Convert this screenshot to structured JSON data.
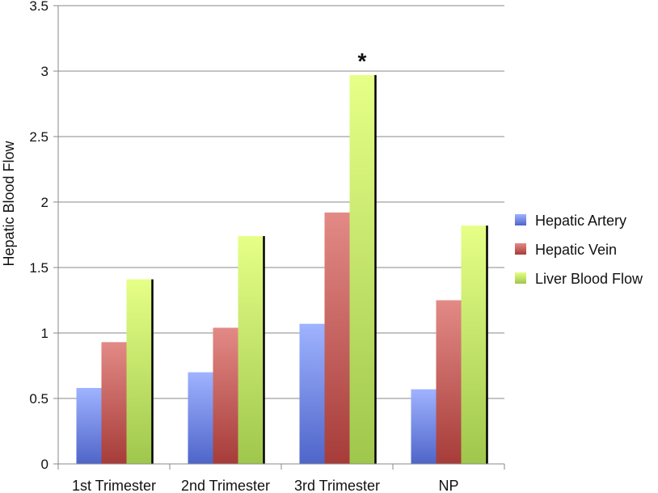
{
  "chart_data": {
    "type": "bar",
    "title": "",
    "xlabel": "",
    "ylabel": "Hepatic  Blood Flow",
    "ylim": [
      0,
      3.5
    ],
    "yticks": [
      "0",
      "0.5",
      "1",
      "1.5",
      "2",
      "2.5",
      "3",
      "3.5"
    ],
    "grid": true,
    "legend_position": "right",
    "categories": [
      "1st Trimester",
      "2nd Trimester",
      "3rd Trimester",
      "NP"
    ],
    "series": [
      {
        "name": "Hepatic Artery",
        "values": [
          0.58,
          0.7,
          1.07,
          0.57
        ],
        "color": "#6f86d8"
      },
      {
        "name": "Hepatic Vein",
        "values": [
          0.93,
          1.04,
          1.92,
          1.25
        ],
        "color": "#c45a57"
      },
      {
        "name": "Liver Blood Flow",
        "values": [
          1.41,
          1.74,
          2.97,
          1.82
        ],
        "color": "#c8ec6a"
      }
    ],
    "annotations": [
      {
        "text": "*",
        "category": "3rd Trimester",
        "series": "Liver Blood Flow"
      }
    ]
  }
}
